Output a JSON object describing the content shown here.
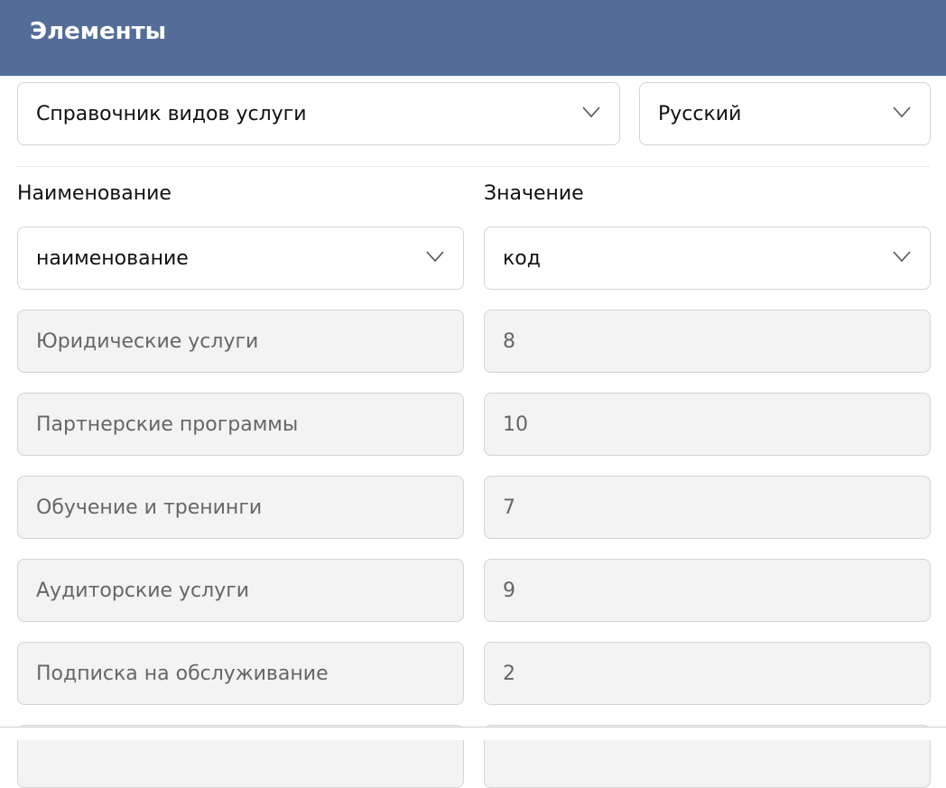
{
  "header": {
    "title": "Элементы"
  },
  "filters": {
    "dictionary": "Справочник видов услуги",
    "language": "Русский"
  },
  "columns": {
    "name_label": "Наименование",
    "value_label": "Значение",
    "name_field": "наименование",
    "value_field": "код"
  },
  "rows": [
    {
      "name": "Юридические услуги",
      "value": "8"
    },
    {
      "name": "Партнерские программы",
      "value": "10"
    },
    {
      "name": "Обучение и тренинги",
      "value": "7"
    },
    {
      "name": "Аудиторские услуги",
      "value": "9"
    },
    {
      "name": "Подписка на обслуживание",
      "value": "2"
    },
    {
      "name": "",
      "value": ""
    }
  ]
}
